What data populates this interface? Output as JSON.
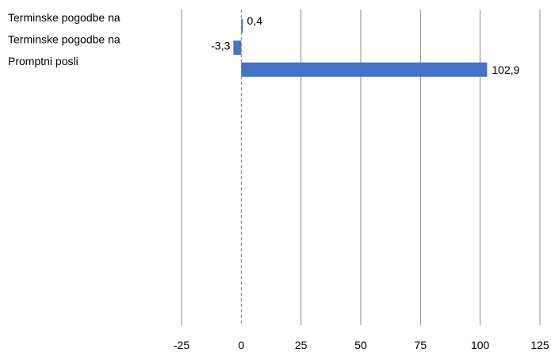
{
  "chart_data": {
    "type": "bar",
    "orientation": "horizontal",
    "categories": [
      "Terminske pogodbe na",
      "Terminske pogodbe na",
      "Promptni posli"
    ],
    "values": [
      0.4,
      -3.3,
      102.9
    ],
    "data_labels": [
      "0,4",
      "-3,3",
      "102,9"
    ],
    "xlim": [
      -25,
      125
    ],
    "x_ticks": [
      -25,
      0,
      25,
      50,
      75,
      100,
      125
    ],
    "x_tick_labels": [
      "-25",
      "0",
      "25",
      "50",
      "75",
      "100",
      "125"
    ],
    "bar_color": "#4472C4",
    "gridlines": true,
    "legend": "none"
  }
}
